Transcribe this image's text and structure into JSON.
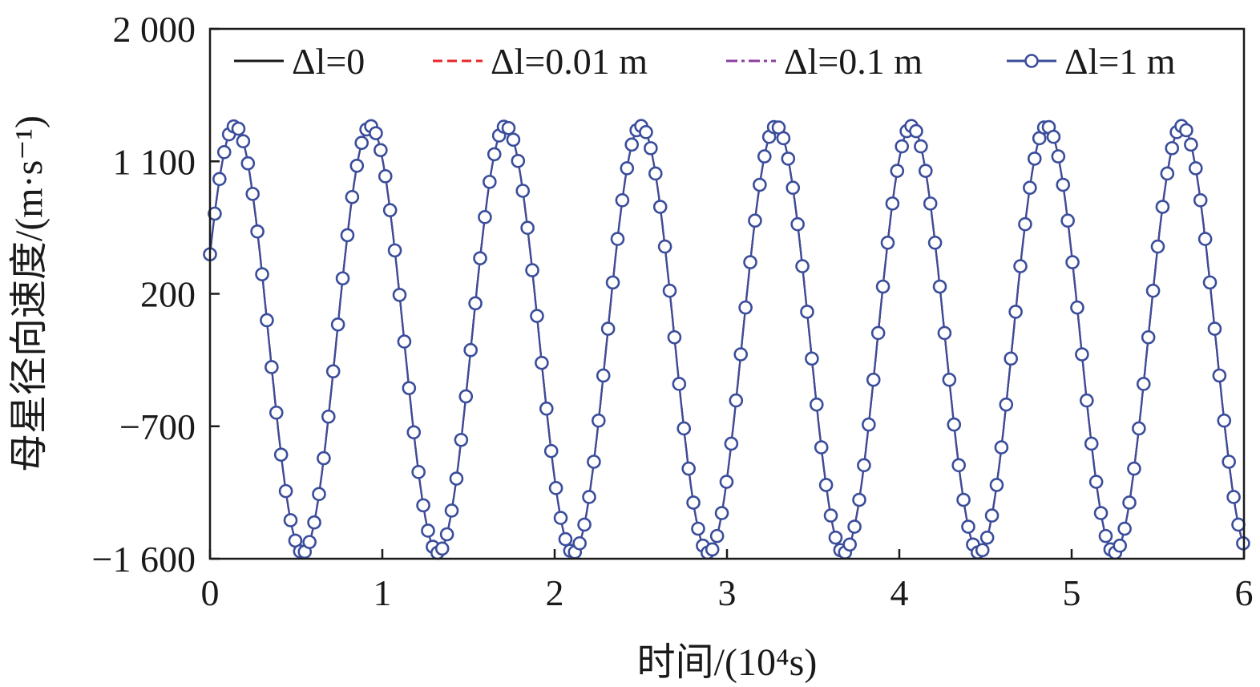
{
  "chart_data": {
    "type": "line",
    "xlabel": "时间/(10⁴s)",
    "ylabel": "母星径向速度/(m·s⁻¹)",
    "xlim": [
      0,
      6
    ],
    "ylim": [
      -1600,
      2000
    ],
    "x_ticks": [
      0,
      1,
      2,
      3,
      4,
      5,
      6
    ],
    "y_ticks": [
      -1600,
      -700,
      200,
      1100,
      2000
    ],
    "x_tick_labels": [
      "0",
      "1",
      "2",
      "3",
      "4",
      "5",
      "6"
    ],
    "y_tick_labels": [
      "−1 600",
      "−700",
      "200",
      "1 100",
      "2 000"
    ],
    "legend_position": "top",
    "series_note": "All four series coincide; sinusoid with amplitude ≈1450 m/s, offset ≈ −110 m/s, period ≈ 0.785×10⁴ s, first maximum at x ≈ 0.145×10⁴ s, sampled at x = 0, 0.0275, 0.055, … , 6",
    "series": [
      {
        "name": "Δl=0",
        "color": "#1a1a1a",
        "style": "solid",
        "marker": "none"
      },
      {
        "name": "Δl=0.01 m",
        "color": "#e8262a",
        "style": "dashed",
        "marker": "none"
      },
      {
        "name": "Δl=0.1 m",
        "color": "#8b3fa0",
        "style": "dash-dot",
        "marker": "none"
      },
      {
        "name": "Δl=1 m",
        "color": "#3a4d9b",
        "style": "solid",
        "marker": "open-circle"
      }
    ],
    "model": {
      "offset": -110,
      "amplitude": 1450,
      "period": 0.785,
      "peak_x": 0.145,
      "sample_step": 0.0275
    }
  }
}
